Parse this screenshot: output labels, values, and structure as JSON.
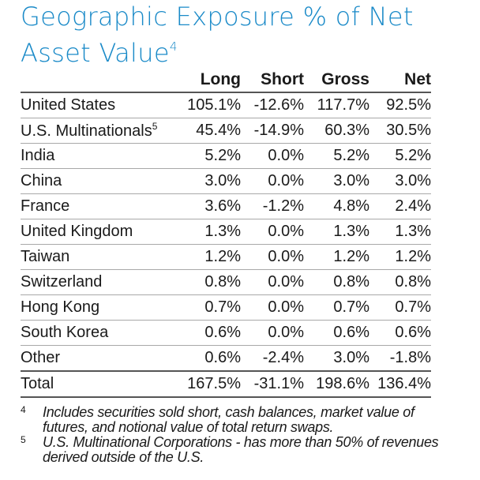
{
  "title": {
    "text": "Geographic Exposure % of Net Asset Value",
    "sup": "4"
  },
  "table": {
    "headers": [
      "",
      "Long",
      "Short",
      "Gross",
      "Net"
    ],
    "rows": [
      {
        "region": "United States",
        "sup": "",
        "long": "105.1%",
        "short": "-12.6%",
        "gross": "117.7%",
        "net": "92.5%"
      },
      {
        "region": "U.S. Multinationals",
        "sup": "5",
        "long": "45.4%",
        "short": "-14.9%",
        "gross": "60.3%",
        "net": "30.5%"
      },
      {
        "region": "India",
        "sup": "",
        "long": "5.2%",
        "short": "0.0%",
        "gross": "5.2%",
        "net": "5.2%"
      },
      {
        "region": "China",
        "sup": "",
        "long": "3.0%",
        "short": "0.0%",
        "gross": "3.0%",
        "net": "3.0%"
      },
      {
        "region": "France",
        "sup": "",
        "long": "3.6%",
        "short": "-1.2%",
        "gross": "4.8%",
        "net": "2.4%"
      },
      {
        "region": "United Kingdom",
        "sup": "",
        "long": "1.3%",
        "short": "0.0%",
        "gross": "1.3%",
        "net": "1.3%"
      },
      {
        "region": "Taiwan",
        "sup": "",
        "long": "1.2%",
        "short": "0.0%",
        "gross": "1.2%",
        "net": "1.2%"
      },
      {
        "region": "Switzerland",
        "sup": "",
        "long": "0.8%",
        "short": "0.0%",
        "gross": "0.8%",
        "net": "0.8%"
      },
      {
        "region": "Hong Kong",
        "sup": "",
        "long": "0.7%",
        "short": "0.0%",
        "gross": "0.7%",
        "net": "0.7%"
      },
      {
        "region": "South Korea",
        "sup": "",
        "long": "0.6%",
        "short": "0.0%",
        "gross": "0.6%",
        "net": "0.6%"
      },
      {
        "region": "Other",
        "sup": "",
        "long": "0.6%",
        "short": "-2.4%",
        "gross": "3.0%",
        "net": "-1.8%"
      }
    ],
    "total": {
      "region": "Total",
      "long": "167.5%",
      "short": "-31.1%",
      "gross": "198.6%",
      "net": "136.4%"
    }
  },
  "footnotes": [
    {
      "mark": "4",
      "text": "Includes securities sold short, cash balances, market value of futures, and notional value of total return swaps."
    },
    {
      "mark": "5",
      "text": "U.S. Multinational Corporations - has more than 50% of revenues derived outside of the U.S."
    }
  ],
  "colors": {
    "title": "#1a8ac8",
    "text": "#1a1a1a",
    "rule": "#a8a8a8"
  }
}
